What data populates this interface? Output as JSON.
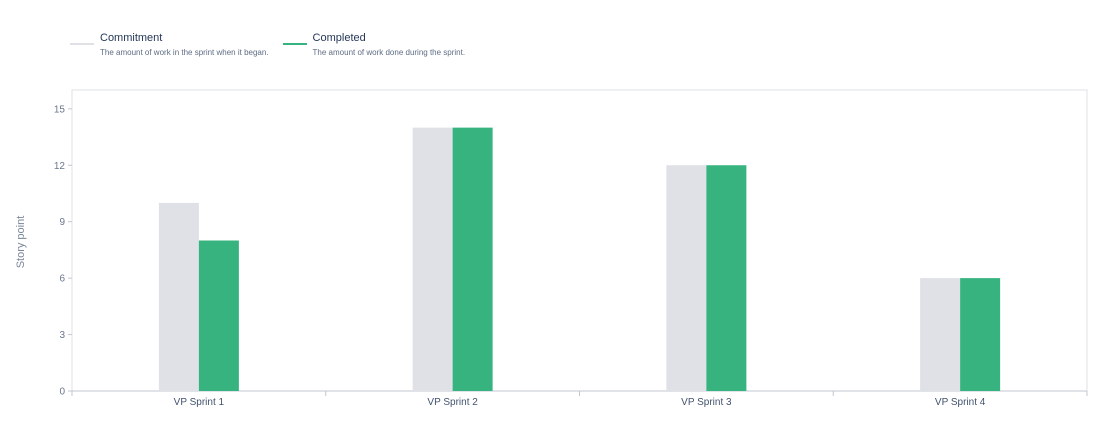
{
  "legend": [
    {
      "name": "Commitment",
      "description": "The amount of work in the sprint when it began.",
      "color": "#dfe1e6"
    },
    {
      "name": "Completed",
      "description": "The amount of work done during the sprint.",
      "color": "#36b37e"
    }
  ],
  "chart_data": {
    "type": "bar",
    "title": "",
    "xlabel": "",
    "ylabel": "Story point",
    "categories": [
      "VP Sprint 1",
      "VP Sprint 2",
      "VP Sprint 3",
      "VP Sprint 4"
    ],
    "series": [
      {
        "name": "Commitment",
        "values": [
          10,
          14,
          12,
          6
        ],
        "color": "#dfe1e6"
      },
      {
        "name": "Completed",
        "values": [
          8,
          14,
          12,
          6
        ],
        "color": "#36b37e"
      }
    ],
    "yticks": [
      0,
      3,
      6,
      9,
      12,
      15
    ],
    "ylim": [
      0,
      16
    ],
    "grid": false,
    "legend_position": "top-left"
  }
}
